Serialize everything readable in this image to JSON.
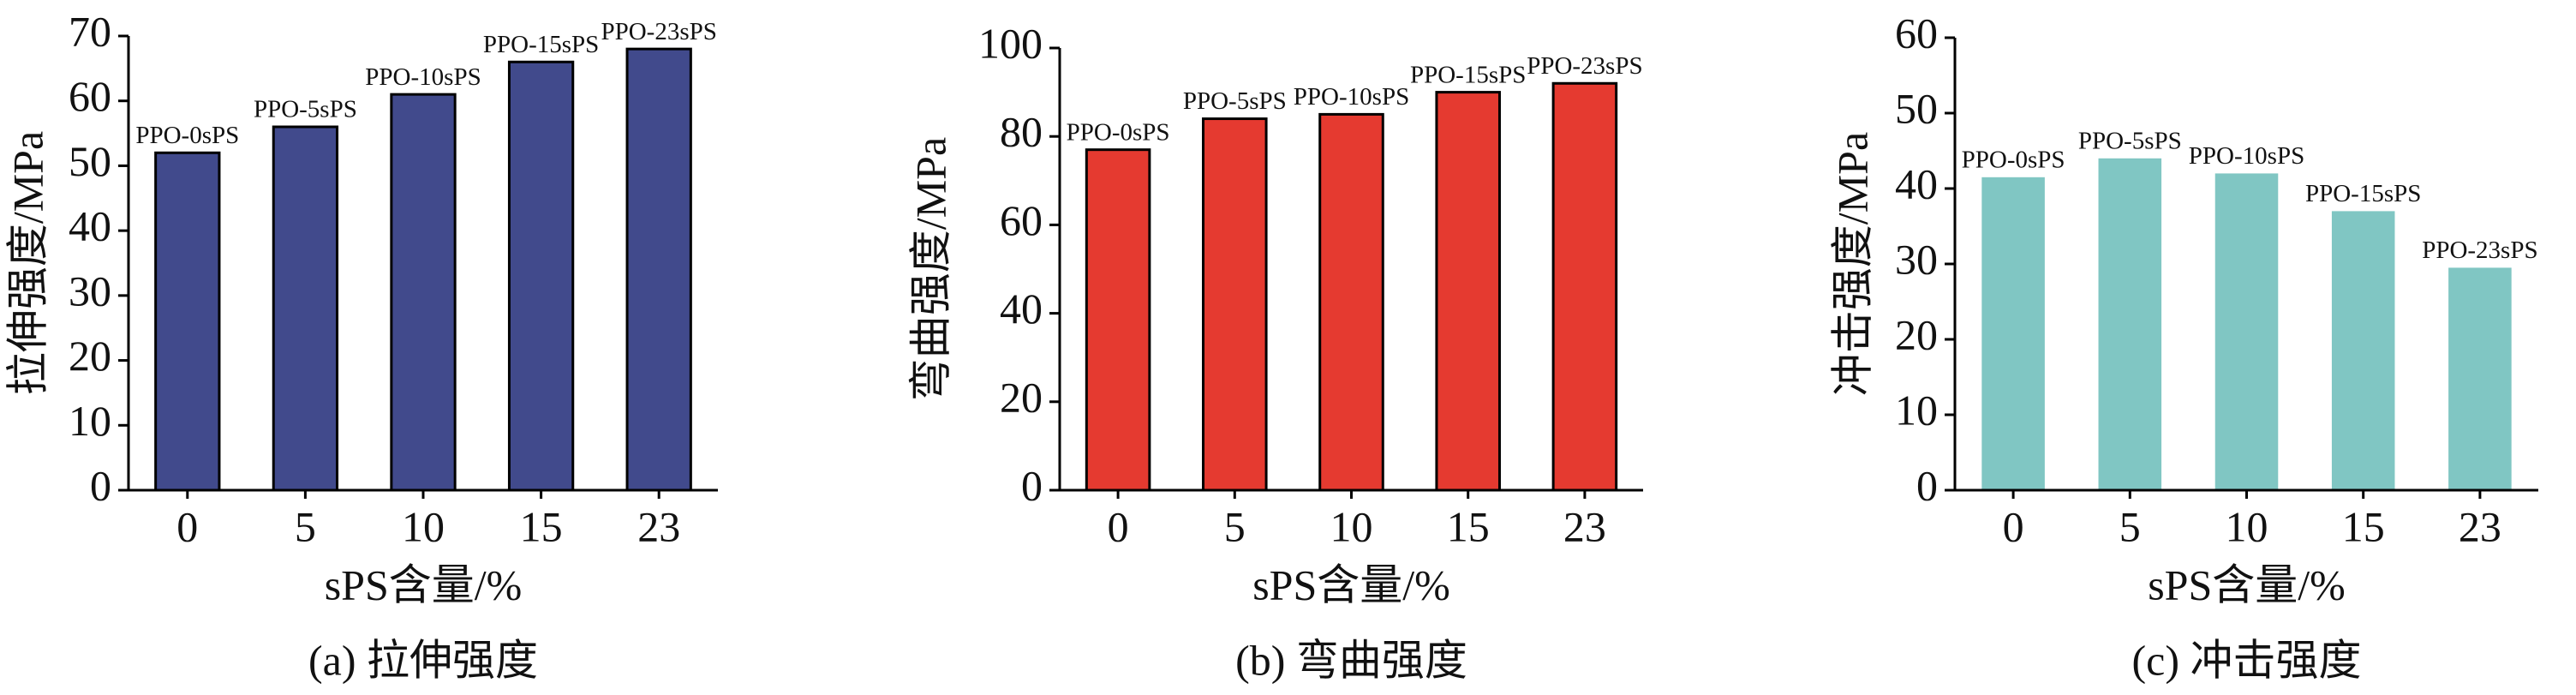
{
  "chart_data": [
    {
      "type": "bar",
      "caption": "(a) 拉伸强度",
      "xlabel": "sPS含量/%",
      "ylabel": "拉伸强度/MPa",
      "categories": [
        "0",
        "5",
        "10",
        "15",
        "23"
      ],
      "values": [
        52,
        56,
        61,
        66,
        68
      ],
      "value_annotations": [
        "PPO-0sPS",
        "PPO-5sPS",
        "PPO-10sPS",
        "PPO-15sPS",
        "PPO-23sPS"
      ],
      "color": "#414a8c",
      "edgecolor": "#000000",
      "ylim": [
        0,
        70
      ],
      "yticks": [
        0,
        10,
        20,
        30,
        40,
        50,
        60,
        70
      ]
    },
    {
      "type": "bar",
      "caption": "(b) 弯曲强度",
      "xlabel": "sPS含量/%",
      "ylabel": "弯曲强度/MPa",
      "categories": [
        "0",
        "5",
        "10",
        "15",
        "23"
      ],
      "values": [
        77,
        84,
        85,
        90,
        92
      ],
      "value_annotations": [
        "PPO-0sPS",
        "PPO-5sPS",
        "PPO-10sPS",
        "PPO-15sPS",
        "PPO-23sPS"
      ],
      "color": "#e53a30",
      "edgecolor": "#000000",
      "ylim": [
        0,
        100
      ],
      "yticks": [
        0,
        20,
        40,
        60,
        80,
        100
      ]
    },
    {
      "type": "bar",
      "caption": "(c) 冲击强度",
      "xlabel": "sPS含量/%",
      "ylabel": "冲击强度/MPa",
      "categories": [
        "0",
        "5",
        "10",
        "15",
        "23"
      ],
      "values": [
        41.5,
        44,
        42,
        37,
        29.5
      ],
      "value_annotations": [
        "PPO-0sPS",
        "PPO-5sPS",
        "PPO-10sPS",
        "PPO-15sPS",
        "PPO-23sPS"
      ],
      "color": "#80c6c3",
      "ylim": [
        0,
        60
      ],
      "yticks": [
        0,
        10,
        20,
        30,
        40,
        50,
        60
      ]
    }
  ]
}
